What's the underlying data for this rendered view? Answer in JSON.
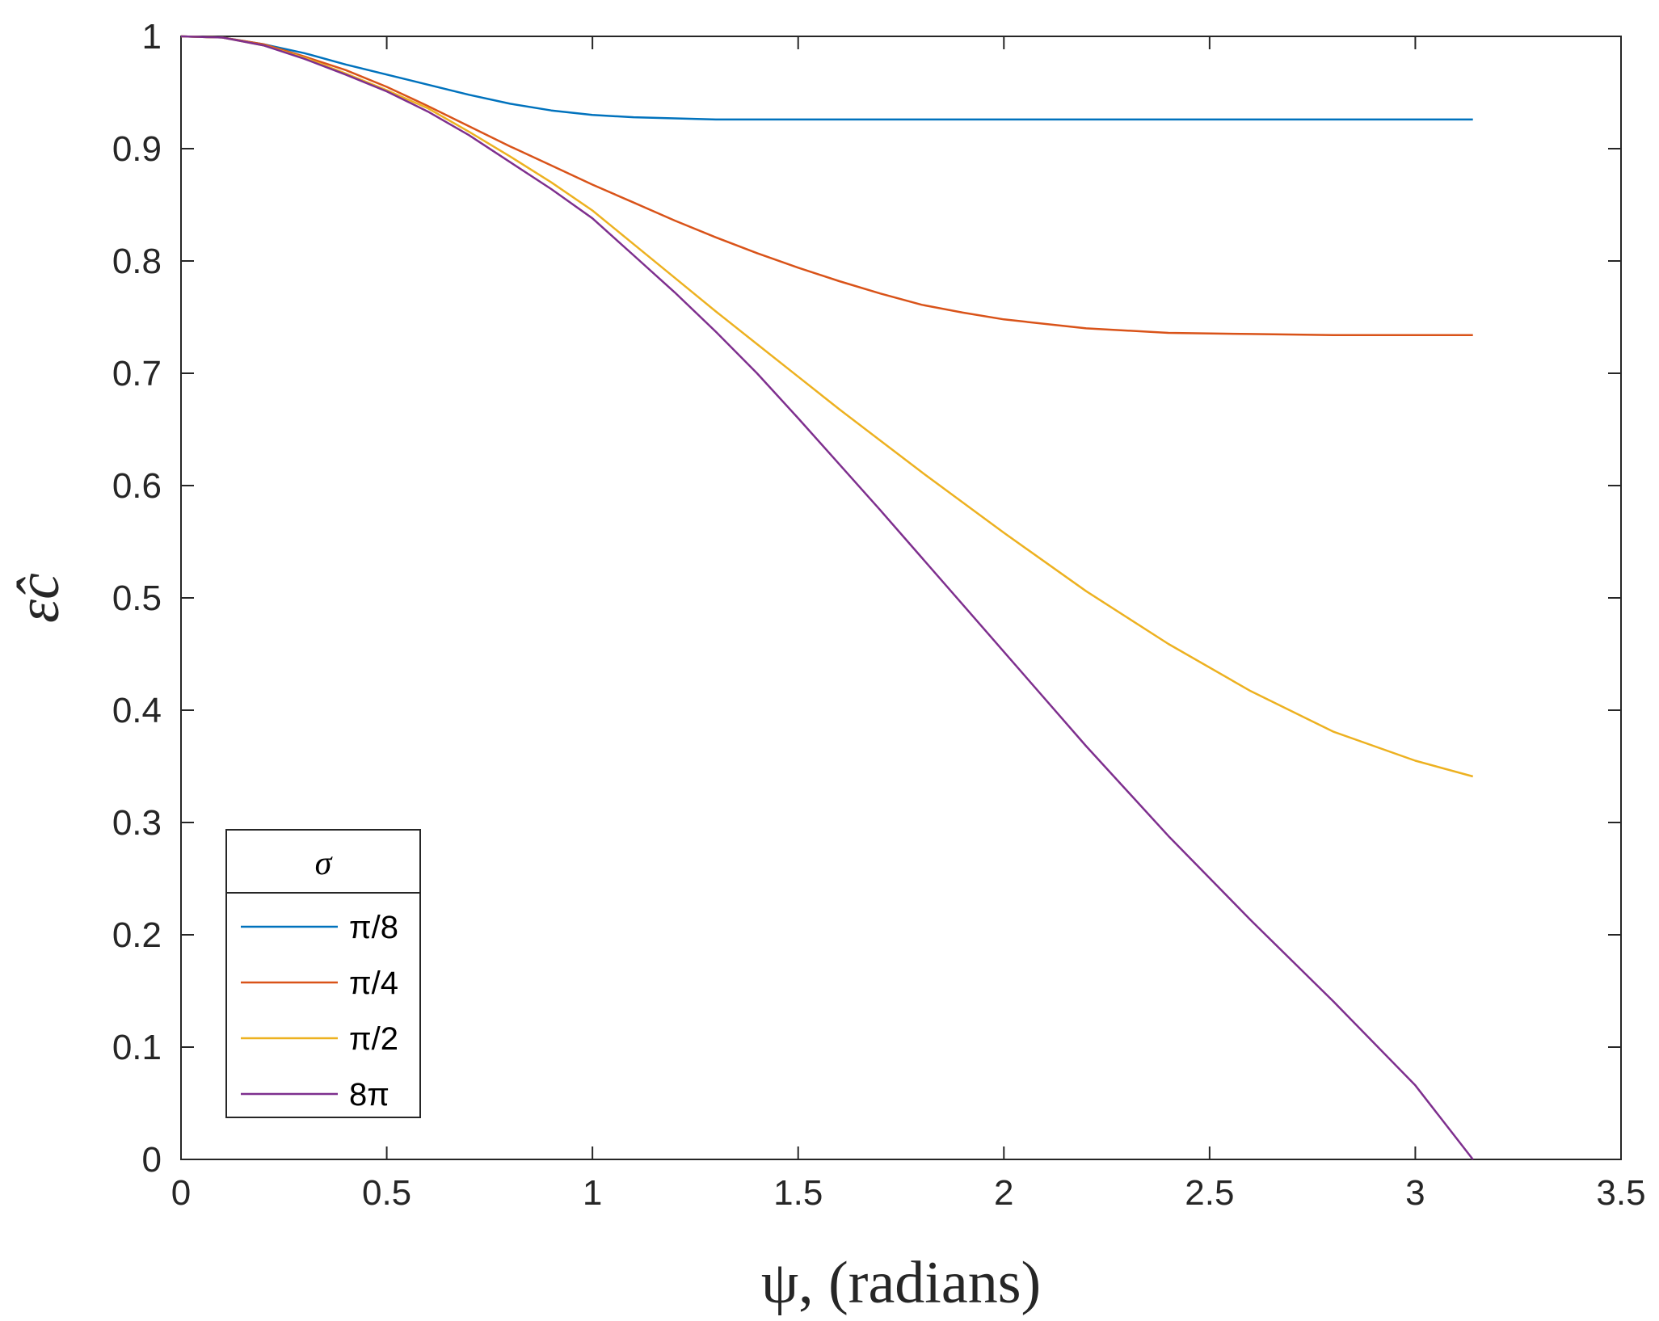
{
  "chart_data": {
    "type": "line",
    "xlabel": "ψ, (radians)",
    "ylabel": "ε̂c",
    "xlim": [
      0,
      3.5
    ],
    "ylim": [
      0,
      1
    ],
    "xticks": [
      "0",
      "0.5",
      "1",
      "1.5",
      "2",
      "2.5",
      "3",
      "3.5"
    ],
    "yticks": [
      "0",
      "0.1",
      "0.2",
      "0.3",
      "0.4",
      "0.5",
      "0.6",
      "0.7",
      "0.8",
      "0.9",
      "1"
    ],
    "grid": false,
    "legend": {
      "title": "σ",
      "placement": "bottom-left"
    },
    "series": [
      {
        "name": "π/8",
        "color": "#0072BD",
        "x": [
          0,
          0.1,
          0.2,
          0.3,
          0.4,
          0.5,
          0.6,
          0.7,
          0.8,
          0.9,
          1.0,
          1.1,
          1.2,
          1.3,
          1.4,
          1.5,
          1.75,
          2.0,
          2.5,
          3.0,
          3.14
        ],
        "y": [
          1.0,
          0.999,
          0.993,
          0.985,
          0.975,
          0.966,
          0.957,
          0.948,
          0.94,
          0.934,
          0.93,
          0.928,
          0.927,
          0.926,
          0.926,
          0.926,
          0.926,
          0.926,
          0.926,
          0.926,
          0.926
        ]
      },
      {
        "name": "π/4",
        "color": "#D95319",
        "x": [
          0,
          0.1,
          0.2,
          0.3,
          0.4,
          0.5,
          0.6,
          0.7,
          0.8,
          0.9,
          1.0,
          1.1,
          1.2,
          1.3,
          1.4,
          1.5,
          1.6,
          1.7,
          1.8,
          1.9,
          2.0,
          2.2,
          2.4,
          2.6,
          2.8,
          3.0,
          3.14
        ],
        "y": [
          1.0,
          0.999,
          0.993,
          0.982,
          0.97,
          0.955,
          0.938,
          0.92,
          0.902,
          0.885,
          0.868,
          0.852,
          0.836,
          0.821,
          0.807,
          0.794,
          0.782,
          0.771,
          0.761,
          0.754,
          0.748,
          0.74,
          0.736,
          0.735,
          0.734,
          0.734,
          0.734
        ]
      },
      {
        "name": "π/2",
        "color": "#EDB120",
        "x": [
          0,
          0.1,
          0.2,
          0.3,
          0.4,
          0.5,
          0.6,
          0.7,
          0.8,
          0.9,
          1.0,
          1.1,
          1.2,
          1.3,
          1.4,
          1.5,
          1.6,
          1.7,
          1.8,
          1.9,
          2.0,
          2.2,
          2.4,
          2.6,
          2.8,
          3.0,
          3.14
        ],
        "y": [
          1.0,
          0.999,
          0.992,
          0.981,
          0.967,
          0.952,
          0.936,
          0.915,
          0.893,
          0.87,
          0.845,
          0.815,
          0.785,
          0.755,
          0.726,
          0.697,
          0.668,
          0.64,
          0.612,
          0.585,
          0.558,
          0.506,
          0.459,
          0.417,
          0.381,
          0.355,
          0.341
        ]
      },
      {
        "name": "8π",
        "color": "#7E2F8E",
        "x": [
          0,
          0.1,
          0.2,
          0.3,
          0.4,
          0.5,
          0.6,
          0.7,
          0.8,
          0.9,
          1.0,
          1.1,
          1.2,
          1.3,
          1.4,
          1.5,
          1.6,
          1.7,
          1.8,
          1.9,
          2.0,
          2.2,
          2.4,
          2.6,
          2.8,
          3.0,
          3.14
        ],
        "y": [
          1.0,
          0.999,
          0.992,
          0.98,
          0.966,
          0.951,
          0.933,
          0.912,
          0.888,
          0.864,
          0.838,
          0.805,
          0.772,
          0.737,
          0.7,
          0.66,
          0.619,
          0.578,
          0.536,
          0.494,
          0.452,
          0.368,
          0.288,
          0.213,
          0.141,
          0.066,
          0.0
        ]
      }
    ]
  }
}
